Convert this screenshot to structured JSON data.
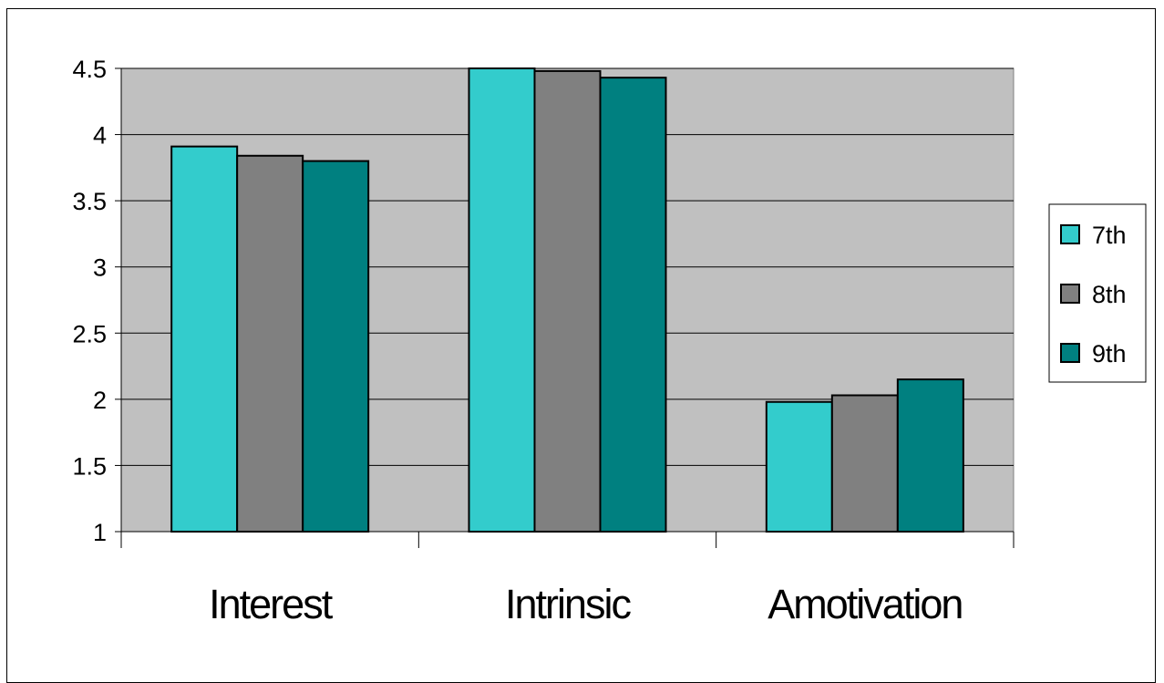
{
  "chart_data": {
    "type": "bar",
    "categories": [
      "Interest",
      "Intrinsic",
      "Amotivation"
    ],
    "series": [
      {
        "name": "7th",
        "values": [
          3.91,
          4.5,
          1.98
        ],
        "color": "#33cccc"
      },
      {
        "name": "8th",
        "values": [
          3.84,
          4.48,
          2.03
        ],
        "color": "#808080"
      },
      {
        "name": "9th",
        "values": [
          3.8,
          4.43,
          2.15
        ],
        "color": "#008080"
      }
    ],
    "y_ticks": [
      "1",
      "1.5",
      "2",
      "2.5",
      "3",
      "3.5",
      "4",
      "4.5"
    ],
    "ylim": [
      1,
      4.5
    ],
    "grid": true,
    "plot_background": "#c0c0c0",
    "legend_position": "right",
    "title": "",
    "xlabel": "",
    "ylabel": ""
  }
}
